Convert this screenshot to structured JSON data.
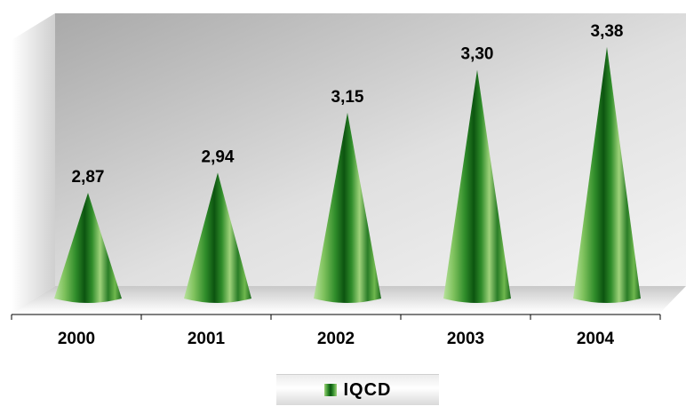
{
  "chart_data": {
    "type": "bar",
    "categories": [
      "2000",
      "2001",
      "2002",
      "2003",
      "2004"
    ],
    "series": [
      {
        "name": "IQCD",
        "values": [
          2.87,
          2.94,
          3.15,
          3.3,
          3.38
        ]
      }
    ],
    "data_labels": [
      "2,87",
      "2,94",
      "3,15",
      "3,30",
      "3,38"
    ],
    "title": "",
    "xlabel": "",
    "ylabel": "",
    "ylim": [
      2.5,
      3.42
    ],
    "grid": false,
    "legend_position": "bottom",
    "colors": {
      "dark": "#0c5410",
      "mid": "#2f8c2a",
      "light": "#9ed27a"
    }
  }
}
